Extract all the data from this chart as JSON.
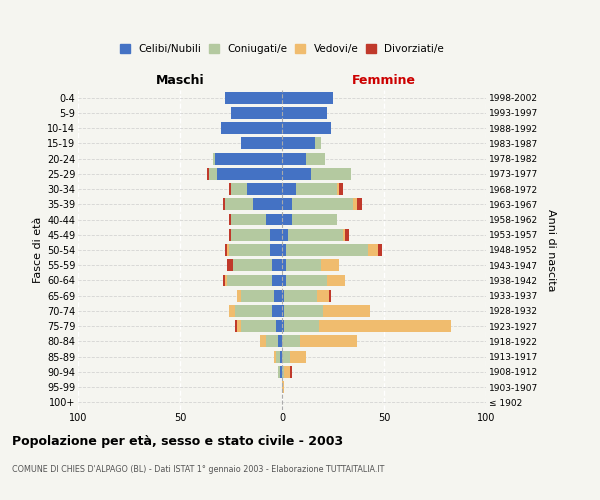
{
  "age_groups": [
    "100+",
    "95-99",
    "90-94",
    "85-89",
    "80-84",
    "75-79",
    "70-74",
    "65-69",
    "60-64",
    "55-59",
    "50-54",
    "45-49",
    "40-44",
    "35-39",
    "30-34",
    "25-29",
    "20-24",
    "15-19",
    "10-14",
    "5-9",
    "0-4"
  ],
  "birth_years": [
    "≤ 1902",
    "1903-1907",
    "1908-1912",
    "1913-1917",
    "1918-1922",
    "1923-1927",
    "1928-1932",
    "1933-1937",
    "1938-1942",
    "1943-1947",
    "1948-1952",
    "1953-1957",
    "1958-1962",
    "1963-1967",
    "1968-1972",
    "1973-1977",
    "1978-1982",
    "1983-1987",
    "1988-1992",
    "1993-1997",
    "1998-2002"
  ],
  "colors": {
    "celibe": "#4472c4",
    "coniugato": "#b4c9a0",
    "vedovo": "#f0bc6e",
    "divorziato": "#c0392b"
  },
  "males": {
    "celibe": [
      0,
      0,
      1,
      1,
      2,
      3,
      5,
      4,
      5,
      5,
      6,
      6,
      8,
      14,
      17,
      32,
      33,
      20,
      30,
      25,
      28
    ],
    "coniugato": [
      0,
      0,
      1,
      2,
      6,
      17,
      18,
      16,
      22,
      19,
      20,
      19,
      17,
      14,
      8,
      4,
      1,
      0,
      0,
      0,
      0
    ],
    "vedovo": [
      0,
      0,
      0,
      1,
      3,
      2,
      3,
      2,
      1,
      0,
      1,
      0,
      0,
      0,
      0,
      0,
      0,
      0,
      0,
      0,
      0
    ],
    "divorziato": [
      0,
      0,
      0,
      0,
      0,
      1,
      0,
      0,
      1,
      3,
      1,
      1,
      1,
      1,
      1,
      1,
      0,
      0,
      0,
      0,
      0
    ]
  },
  "females": {
    "nubile": [
      0,
      0,
      0,
      0,
      0,
      1,
      1,
      1,
      2,
      2,
      2,
      3,
      5,
      5,
      7,
      14,
      12,
      16,
      24,
      22,
      25
    ],
    "coniugata": [
      0,
      0,
      1,
      4,
      9,
      17,
      19,
      16,
      20,
      17,
      40,
      27,
      22,
      30,
      20,
      20,
      9,
      3,
      0,
      0,
      0
    ],
    "vedova": [
      0,
      1,
      3,
      8,
      28,
      65,
      23,
      6,
      9,
      9,
      5,
      1,
      0,
      2,
      1,
      0,
      0,
      0,
      0,
      0,
      0
    ],
    "divorziata": [
      0,
      0,
      1,
      0,
      0,
      0,
      0,
      1,
      0,
      0,
      2,
      2,
      0,
      2,
      2,
      0,
      0,
      0,
      0,
      0,
      0
    ]
  },
  "title": "Popolazione per età, sesso e stato civile - 2003",
  "subtitle": "COMUNE DI CHIES D'ALPAGO (BL) - Dati ISTAT 1° gennaio 2003 - Elaborazione TUTTAITALIA.IT",
  "ylabel_left": "Fasce di età",
  "ylabel_right": "Anni di nascita",
  "xlabel_left": "Maschi",
  "xlabel_right": "Femmine",
  "xlim": 100,
  "legend_labels": [
    "Celibi/Nubili",
    "Coniugati/e",
    "Vedovi/e",
    "Divorziati/e"
  ],
  "bg_color": "#f5f5f0"
}
